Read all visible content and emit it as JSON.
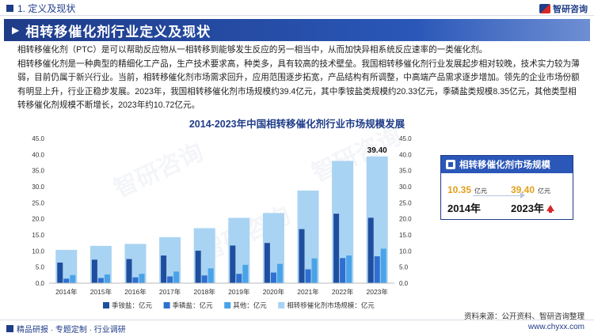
{
  "header": {
    "section": "1. 定义及现状",
    "logo": "智研咨询"
  },
  "title": "相转移催化剂行业定义及现状",
  "paragraphs": [
    "相转移催化剂（PTC）是可以帮助反应物从一相转移到能够发生反应的另一相当中，从而加快异相系统反应速率的一类催化剂。",
    "相转移催化剂是一种典型的精细化工产品，生产技术要求高，种类多，具有较高的技术壁垒。我国相转移催化剂行业发展起步相对较晚，技术实力较为薄弱，目前仍属于新兴行业。当前，相转移催化剂市场需求回升，应用范围逐步拓宽，产品结构有所调整，中高端产品需求逐步增加。领先的企业市场份额有明显上升，行业正稳步发展。2023年，我国相转移催化剂市场规模约39.4亿元，其中季铵盐类规模约20.33亿元，季磷盐类规模8.35亿元，其他类型相转移催化剂规模不断增长，2023年约10.72亿元。"
  ],
  "chart_data": {
    "type": "bar",
    "title": "2014-2023年中国相转移催化剂行业市场规模发展",
    "categories": [
      "2014年",
      "2015年",
      "2016年",
      "2017年",
      "2018年",
      "2019年",
      "2020年",
      "2021年",
      "2022年",
      "2023年"
    ],
    "series": [
      {
        "name": "季铵盐：亿元",
        "color": "#1f4e9e",
        "values": [
          6.4,
          7.3,
          7.5,
          8.6,
          10.1,
          11.7,
          12.5,
          16.8,
          21.6,
          20.33
        ]
      },
      {
        "name": "季磷盐：亿元",
        "color": "#2f6fd0",
        "values": [
          1.4,
          1.6,
          1.8,
          2.1,
          2.4,
          2.9,
          3.3,
          4.3,
          7.8,
          8.35
        ]
      },
      {
        "name": "其他：亿元",
        "color": "#4aa3e8",
        "values": [
          2.5,
          2.7,
          2.9,
          3.6,
          4.6,
          5.7,
          6.0,
          7.7,
          8.6,
          10.72
        ]
      },
      {
        "name": "相转移催化剂市场规模：亿元",
        "color": "#a9d3f2",
        "values": [
          10.35,
          11.6,
          12.2,
          14.3,
          17.1,
          20.3,
          21.8,
          28.8,
          38.0,
          39.4
        ]
      }
    ],
    "ylim": [
      0,
      45
    ],
    "yticks": [
      "0.0",
      "5.0",
      "10.0",
      "15.0",
      "20.0",
      "25.0",
      "30.0",
      "35.0",
      "40.0",
      "45.0"
    ],
    "annotation": "39.40",
    "xlabel": "",
    "ylabel": ""
  },
  "infobox": {
    "title": "相转移催化剂市场规模",
    "from_value": "10.35",
    "to_value": "39.40",
    "unit": "亿元",
    "from_year": "2014年",
    "to_year": "2023年"
  },
  "watermark": "智研咨询",
  "source": "资料来源：公开资料、智研咨询整理",
  "footer": {
    "left": "精品研报 · 专题定制 · 行业调研",
    "right": "www.chyxx.com"
  }
}
